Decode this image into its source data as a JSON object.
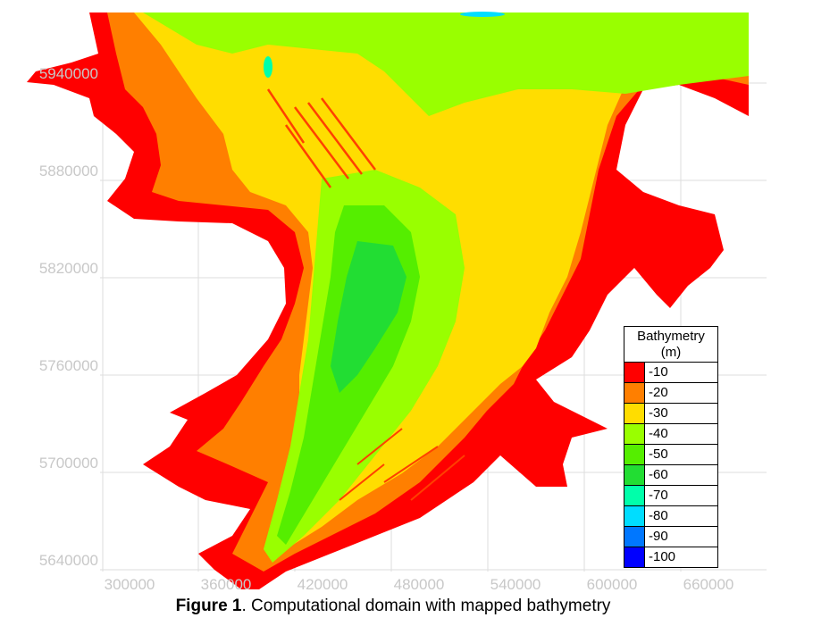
{
  "map": {
    "y_ticks": [
      "5940000",
      "5880000",
      "5820000",
      "5760000",
      "5700000",
      "5640000"
    ],
    "x_ticks": [
      "300000",
      "360000",
      "420000",
      "480000",
      "540000",
      "600000",
      "660000"
    ]
  },
  "legend": {
    "title_line1": "Bathymetry",
    "title_line2": "(m)",
    "entries": [
      {
        "label": "-10",
        "color": "#ff0000"
      },
      {
        "label": "-20",
        "color": "#ff7f00"
      },
      {
        "label": "-30",
        "color": "#ffdd00"
      },
      {
        "label": "-40",
        "color": "#99ff00"
      },
      {
        "label": "-50",
        "color": "#55ee00"
      },
      {
        "label": "-60",
        "color": "#22dd33"
      },
      {
        "label": "-70",
        "color": "#00ffaa"
      },
      {
        "label": "-80",
        "color": "#00ddff"
      },
      {
        "label": "-90",
        "color": "#0077ff"
      },
      {
        "label": "-100",
        "color": "#0000ff"
      }
    ]
  },
  "caption": {
    "prefix": "Figure 1",
    "text": ". Computational domain with mapped bathymetry"
  }
}
